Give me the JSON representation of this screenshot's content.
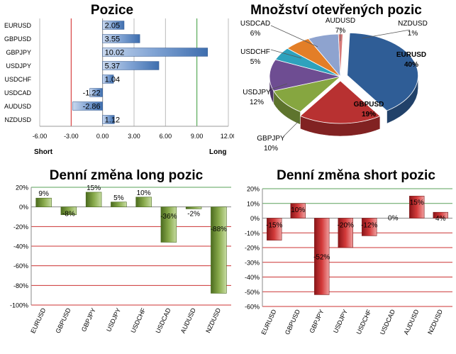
{
  "colors": {
    "bar_blue": "#4f7fbe",
    "bar_green": "#6b8d2f",
    "bar_red": "#c0282b",
    "grid_red": "#d02020",
    "grid_green": "#3a9a3a"
  },
  "chart_data": [
    {
      "id": "pozice",
      "type": "bar",
      "orientation": "horizontal",
      "title": "Pozice",
      "categories": [
        "EURUSD",
        "GBPUSD",
        "GBPJPY",
        "USDJPY",
        "USDCHF",
        "USDCAD",
        "AUDUSD",
        "NZDUSD"
      ],
      "values": [
        2.05,
        3.55,
        10.02,
        5.37,
        1.04,
        -1.22,
        -2.86,
        1.12
      ],
      "value_labels": [
        "2.05",
        "3.55",
        "10.02",
        "5.37",
        "1.04",
        "-1.22",
        "-2.86",
        "1.12"
      ],
      "xlim": [
        -6,
        12
      ],
      "xticks": [
        "-6.00",
        "-3.00",
        "0.00",
        "3.00",
        "6.00",
        "9.00",
        "12.00"
      ],
      "xtick_values": [
        -6,
        -3,
        0,
        3,
        6,
        9,
        12
      ],
      "left_label": "Short",
      "right_label": "Long"
    },
    {
      "id": "mnozstvi",
      "type": "pie",
      "title": "Množství otevřených pozic",
      "slices": [
        {
          "label": "EURUSD",
          "value": 40,
          "value_label": "40%",
          "color": "#2f5d96"
        },
        {
          "label": "GBPUSD",
          "value": 19,
          "value_label": "19%",
          "color": "#b83131"
        },
        {
          "label": "GBPJPY",
          "value": 10,
          "value_label": "10%",
          "color": "#86a640"
        },
        {
          "label": "USDJPY",
          "value": 12,
          "value_label": "12%",
          "color": "#6e4d92"
        },
        {
          "label": "USDCHF",
          "value": 5,
          "value_label": "5%",
          "color": "#2ea2bd"
        },
        {
          "label": "USDCAD",
          "value": 6,
          "value_label": "6%",
          "color": "#e37e27"
        },
        {
          "label": "AUDUSD",
          "value": 7,
          "value_label": "7%",
          "color": "#8ea3cf"
        },
        {
          "label": "NZDUSD",
          "value": 1,
          "value_label": "1%",
          "color": "#d77a7a"
        }
      ]
    },
    {
      "id": "long",
      "type": "bar",
      "title": "Denní změna long pozic",
      "categories": [
        "EURUSD",
        "GBPUSD",
        "GBPJPY",
        "USDJPY",
        "USDCHF",
        "USDCAD",
        "AUDUSD",
        "NZDUSD"
      ],
      "values": [
        9,
        -8,
        15,
        5,
        10,
        -36,
        -2,
        -88
      ],
      "value_labels": [
        "9%",
        "-8%",
        "15%",
        "5%",
        "10%",
        "-36%",
        "-2%",
        "-88%"
      ],
      "ylim": [
        -100,
        20
      ],
      "yticks": [
        "20%",
        "0%",
        "-20%",
        "-40%",
        "-60%",
        "-80%",
        "-100%"
      ],
      "ytick_values": [
        20,
        0,
        -20,
        -40,
        -60,
        -80,
        -100
      ]
    },
    {
      "id": "short",
      "type": "bar",
      "title": "Denní změna short pozic",
      "categories": [
        "EURUSD",
        "GBPUSD",
        "GBPJPY",
        "USDJPY",
        "USDCHF",
        "USDCAD",
        "AUDUSD",
        "NZDUSD"
      ],
      "values": [
        -15,
        10,
        -52,
        -20,
        -12,
        0,
        15,
        4
      ],
      "value_labels": [
        "-15%",
        "10%",
        "-52%",
        "-20%",
        "-12%",
        "0%",
        "15%",
        "4%"
      ],
      "ylim": [
        -60,
        20
      ],
      "yticks": [
        "20%",
        "10%",
        "0%",
        "-10%",
        "-20%",
        "-30%",
        "-40%",
        "-50%",
        "-60%"
      ],
      "ytick_values": [
        20,
        10,
        0,
        -10,
        -20,
        -30,
        -40,
        -50,
        -60
      ]
    }
  ]
}
